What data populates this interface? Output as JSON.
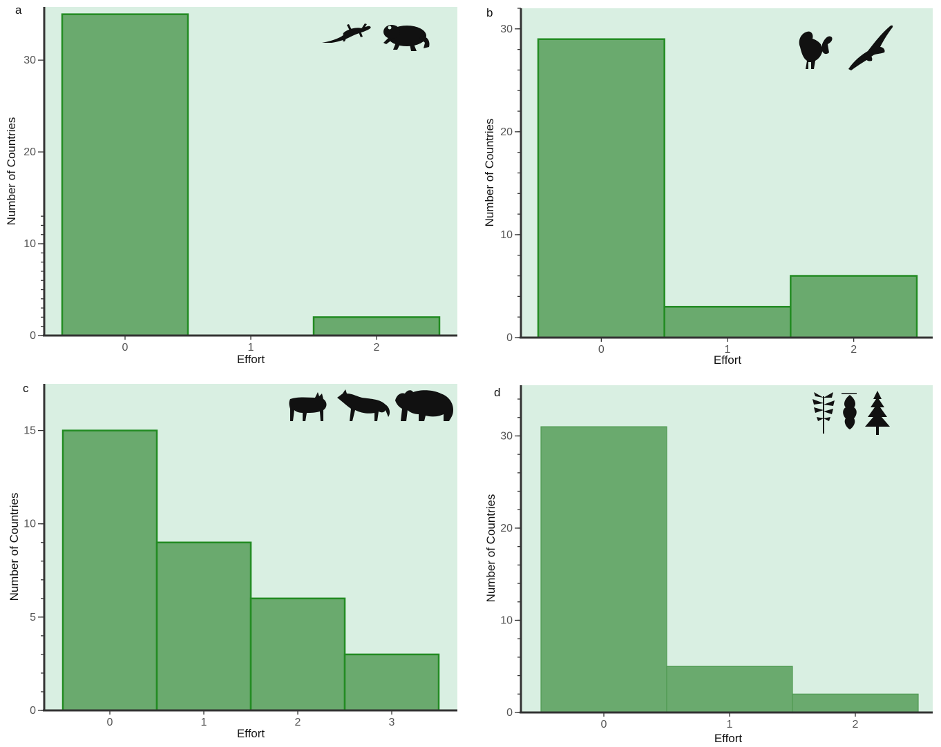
{
  "chart_data": [
    {
      "panel_label": "a",
      "type": "bar",
      "categories": [
        "0",
        "1",
        "2"
      ],
      "values": [
        35,
        0,
        2
      ],
      "xlabel": "Effort",
      "ylabel": "Number of Countries",
      "yticks": [
        0,
        10,
        20,
        30
      ],
      "ylim": [
        0,
        35.8
      ],
      "grid": false,
      "icons": [
        "lizard-icon",
        "toad-icon"
      ]
    },
    {
      "panel_label": "b",
      "type": "bar",
      "categories": [
        "0",
        "1",
        "2"
      ],
      "values": [
        29,
        3,
        6
      ],
      "xlabel": "Effort",
      "ylabel": "Number of Countries",
      "yticks": [
        0,
        10,
        20,
        30
      ],
      "ylim": [
        0,
        32
      ],
      "grid": false,
      "icons": [
        "grouse-icon",
        "eagle-icon"
      ]
    },
    {
      "panel_label": "c",
      "type": "bar",
      "categories": [
        "0",
        "1",
        "2",
        "3"
      ],
      "values": [
        15,
        9,
        6,
        3
      ],
      "xlabel": "Effort",
      "ylabel": "Number of Countries",
      "yticks": [
        0,
        5,
        10,
        15
      ],
      "ylim": [
        0,
        17.5
      ],
      "grid": false,
      "icons": [
        "lynx-icon",
        "wolf-icon",
        "bear-icon"
      ]
    },
    {
      "panel_label": "d",
      "type": "bar",
      "categories": [
        "0",
        "1",
        "2"
      ],
      "values": [
        31,
        5,
        2
      ],
      "xlabel": "Effort",
      "ylabel": "Number of Countries",
      "yticks": [
        0,
        10,
        20,
        30
      ],
      "ylim": [
        0,
        35.5
      ],
      "grid": false,
      "icons": [
        "fern-icon",
        "oak-leaf-icon",
        "spruce-icon"
      ]
    }
  ],
  "colors": {
    "plot_background": "#d9efe2",
    "bar_fill": "#6aaa6e",
    "bar_edge": "#228b22",
    "axis": "#333333",
    "silhouette": "#111111"
  }
}
